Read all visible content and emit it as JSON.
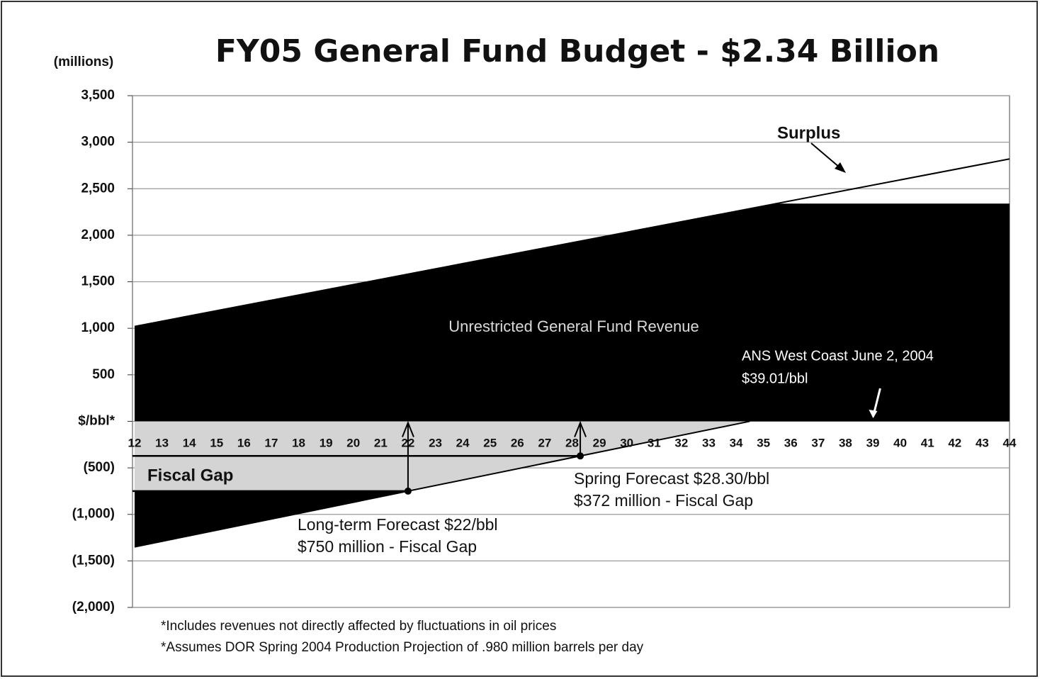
{
  "chart_data": {
    "type": "area",
    "title": "FY05 General Fund Budget - $2.34 Billion",
    "y_label": "(millions)",
    "xlim": [
      12,
      44
    ],
    "xticks": [
      12,
      13,
      14,
      15,
      16,
      17,
      18,
      19,
      20,
      21,
      22,
      23,
      24,
      25,
      26,
      27,
      28,
      29,
      30,
      31,
      32,
      33,
      34,
      35,
      36,
      37,
      38,
      39,
      40,
      41,
      42,
      43,
      44
    ],
    "ylim": [
      -2000,
      3500
    ],
    "yticks": [
      {
        "value": 3500,
        "label": "3,500"
      },
      {
        "value": 3000,
        "label": "3,000"
      },
      {
        "value": 2500,
        "label": "2,500"
      },
      {
        "value": 2000,
        "label": "2,000"
      },
      {
        "value": 1500,
        "label": "1,500"
      },
      {
        "value": 1000,
        "label": "1,000"
      },
      500,
      {
        "value": 0,
        "label": "$/bbl*"
      },
      {
        "value": -500,
        "label": "(500)"
      },
      {
        "value": -1000,
        "label": "(1,000)"
      },
      {
        "value": -1500,
        "label": "(1,500)"
      },
      {
        "value": -2000,
        "label": "(2,000)"
      }
    ],
    "grid": true,
    "budget": 2340,
    "series": [
      {
        "name": "Unrestricted General Fund Revenue",
        "color": "#000000",
        "x": [
          12,
          44
        ],
        "values": [
          1020,
          2820
        ]
      },
      {
        "name": "Fiscal Gap",
        "color": "#d4d4d4",
        "x": [
          12,
          34.5
        ],
        "values": [
          -1350,
          0
        ]
      }
    ],
    "surplus_label": "Surplus",
    "forecasts": [
      {
        "x": 22,
        "y": -750,
        "lines": [
          "Long-term Forecast $22/bbl",
          "$750 million - Fiscal Gap"
        ]
      },
      {
        "x": 28.3,
        "y": -372,
        "lines": [
          "Spring Forecast $28.30/bbl",
          "$372 million - Fiscal Gap"
        ]
      }
    ],
    "current_price": {
      "x": 39.01,
      "lines": [
        "ANS West Coast June 2, 2004",
        "$39.01/bbl"
      ]
    },
    "footnotes": [
      "*Includes revenues not directly affected by fluctuations in oil prices",
      "*Assumes DOR Spring 2004 Production Projection of .980 million barrels per day"
    ]
  }
}
